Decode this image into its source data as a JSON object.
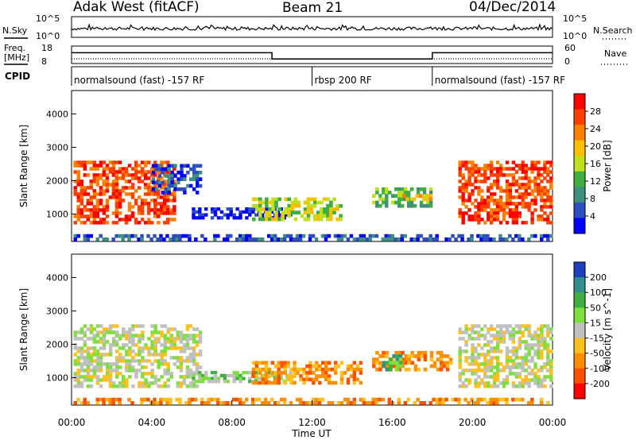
{
  "header": {
    "station": "Adak West (fitACF)",
    "beam": "Beam 21",
    "date": "04/Dec/2014"
  },
  "noise_panel": {
    "left_label": "N.Sky",
    "right_label": "N.Search",
    "left_ticks": [
      "10^5",
      "10^0"
    ],
    "right_ticks": [
      "10^5",
      "10^0"
    ]
  },
  "freq_panel": {
    "left_label_1": "Freq.",
    "left_label_2": "[MHz]",
    "right_label": "Nave",
    "left_ticks": [
      "18",
      "8"
    ],
    "right_ticks": [
      "60",
      "0"
    ],
    "freq_steps": [
      {
        "from": 0,
        "to": 10,
        "mhz": 14.2
      },
      {
        "from": 10,
        "to": 18,
        "mhz": 10.6
      },
      {
        "from": 18,
        "to": 24,
        "mhz": 14.2
      }
    ]
  },
  "cpid": {
    "label": "CPID",
    "segments": [
      {
        "from": 0,
        "to": 12,
        "text": "normalsound (fast) -157 RF"
      },
      {
        "from": 12,
        "to": 18,
        "text": "rbsp 200 RF"
      },
      {
        "from": 18,
        "to": 24,
        "text": "normalsound (fast) -157 RF"
      }
    ]
  },
  "chart_data": [
    {
      "type": "heatmap",
      "name": "power",
      "ylabel": "Slant Range [km]",
      "ylim": [
        180,
        4700
      ],
      "yticks": [
        "1000",
        "2000",
        "3000",
        "4000"
      ],
      "xlim": [
        0,
        24
      ],
      "colorbar_label": "Power [dB]",
      "colorbar_ticks": [
        "4",
        "8",
        "12",
        "16",
        "20",
        "24",
        "28"
      ],
      "colors": [
        "#0000ff",
        "#2f4fbf",
        "#3f8f7f",
        "#3faf3f",
        "#bfdf1f",
        "#ffbf00",
        "#ff7f00",
        "#ff3f00",
        "#ff0000"
      ],
      "regions": [
        {
          "t0": 0.1,
          "t1": 5.2,
          "r0": 700,
          "r1": 2600,
          "level": 7
        },
        {
          "t0": 4.0,
          "t1": 6.5,
          "r0": 1600,
          "r1": 2500,
          "level": 1
        },
        {
          "t0": 6.0,
          "t1": 11.0,
          "r0": 850,
          "r1": 1200,
          "level": 0
        },
        {
          "t0": 9.0,
          "t1": 13.5,
          "r0": 800,
          "r1": 1500,
          "level": 4
        },
        {
          "t0": 15.0,
          "t1": 18.0,
          "r0": 1200,
          "r1": 1800,
          "level": 3
        },
        {
          "t0": 16.5,
          "t1": 18.0,
          "r0": 1400,
          "r1": 1600,
          "level": 5
        },
        {
          "t0": 19.3,
          "t1": 24.0,
          "r0": 700,
          "r1": 2600,
          "level": 7
        },
        {
          "t0": 0.1,
          "t1": 24.0,
          "r0": 200,
          "r1": 400,
          "level": 1
        }
      ]
    },
    {
      "type": "heatmap",
      "name": "velocity",
      "ylabel": "Slant Range [km]",
      "ylim": [
        180,
        4700
      ],
      "yticks": [
        "1000",
        "2000",
        "3000",
        "4000"
      ],
      "xlim": [
        0,
        24
      ],
      "xticks": [
        "00:00",
        "04:00",
        "08:00",
        "12:00",
        "16:00",
        "20:00",
        "00:00"
      ],
      "xlabel": "Time UT",
      "colorbar_label": "Velocity [m s^-1]",
      "colorbar_ticks": [
        "200",
        "100",
        "50",
        "15",
        "-15",
        "-50",
        "-100",
        "-200"
      ],
      "colors": [
        "#1f3fbf",
        "#2f8f8f",
        "#3faf3f",
        "#7fdf3f",
        "#c0c0c0",
        "#ffbf1f",
        "#ff8f00",
        "#ff4f00",
        "#ff0000"
      ],
      "regions": [
        {
          "t0": 0.1,
          "t1": 6.5,
          "r0": 700,
          "r1": 2600,
          "level": 4
        },
        {
          "t0": 6.0,
          "t1": 11.0,
          "r0": 850,
          "r1": 1200,
          "level": 3
        },
        {
          "t0": 9.0,
          "t1": 14.5,
          "r0": 800,
          "r1": 1500,
          "level": 6
        },
        {
          "t0": 15.0,
          "t1": 19.0,
          "r0": 1200,
          "r1": 1800,
          "level": 6
        },
        {
          "t0": 15.5,
          "t1": 16.5,
          "r0": 1200,
          "r1": 1700,
          "level": 2
        },
        {
          "t0": 19.3,
          "t1": 24.0,
          "r0": 700,
          "r1": 2600,
          "level": 4
        },
        {
          "t0": 0.1,
          "t1": 24.0,
          "r0": 200,
          "r1": 400,
          "level": 6
        }
      ]
    }
  ]
}
